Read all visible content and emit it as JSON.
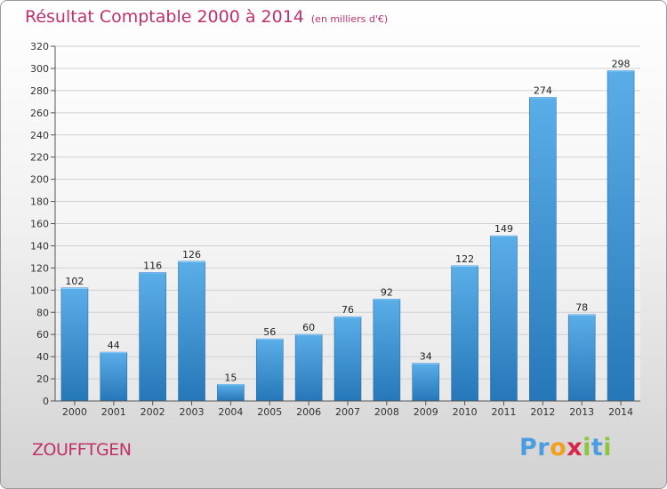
{
  "title": {
    "main": "Résultat Comptable 2000 à 2014",
    "unit": "(en milliers d'€)"
  },
  "town": "ZOUFFTGEN",
  "brand": {
    "letters": [
      "P",
      "r",
      "o",
      "x",
      "i",
      "t",
      "i"
    ],
    "colors": [
      "#4a9de0",
      "#4a9de0",
      "#f2a01e",
      "#d9254a",
      "#8cc63f",
      "#4a9de0",
      "#8cc63f"
    ]
  },
  "colors": {
    "bar_top": "#5aaee8",
    "bar_bottom": "#2677b8",
    "title": "#c0306a",
    "grid": "#d0d0d0"
  },
  "chart_data": {
    "type": "bar",
    "title": "Résultat Comptable 2000 à 2014",
    "subtitle": "(en milliers d'€)",
    "categories": [
      "2000",
      "2001",
      "2002",
      "2003",
      "2004",
      "2005",
      "2006",
      "2007",
      "2008",
      "2009",
      "2010",
      "2011",
      "2012",
      "2013",
      "2014"
    ],
    "values": [
      102,
      44,
      116,
      126,
      15,
      56,
      60,
      76,
      92,
      34,
      122,
      149,
      274,
      78,
      298
    ],
    "ylim": [
      0,
      320
    ],
    "yticks": [
      0,
      20,
      40,
      60,
      80,
      100,
      120,
      140,
      160,
      180,
      200,
      220,
      240,
      260,
      280,
      300,
      320
    ],
    "grid": true,
    "xlabel": "",
    "ylabel": ""
  }
}
